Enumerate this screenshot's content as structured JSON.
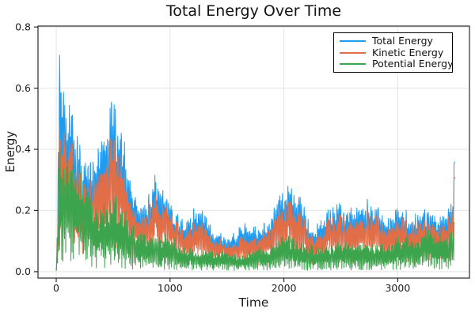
{
  "chart_data": {
    "type": "line",
    "title": "Total Energy Over Time",
    "xlabel": "Time",
    "ylabel": "Energy",
    "xlim": [
      -160,
      3630
    ],
    "ylim": [
      -0.021,
      0.803
    ],
    "xticks": [
      0,
      1000,
      2000,
      3000
    ],
    "yticks": [
      0.0,
      0.2,
      0.4,
      0.6,
      0.8
    ],
    "grid": true,
    "legend_position": "top-right",
    "x_data_range": [
      0,
      3500
    ],
    "series": [
      {
        "name": "Total Energy",
        "color": "#1E9CF2"
      },
      {
        "name": "Kinetic Energy",
        "color": "#E26E48"
      },
      {
        "name": "Potential Energy",
        "color": "#3CA44C"
      }
    ],
    "description": "Three dense noisy time-series; each curve oscillates rapidly between near zero and its upper envelope. Peak total energy 0.78 near t=25, decaying to a minimum band around t=1500, partial recovery near t=2000 and a final spike to 0.36 at t=3500.",
    "envelope": {
      "t": [
        0,
        25,
        60,
        100,
        150,
        220,
        300,
        400,
        520,
        600,
        650,
        750,
        850,
        950,
        1050,
        1150,
        1250,
        1400,
        1550,
        1700,
        1850,
        1950,
        2050,
        2150,
        2250,
        2350,
        2450,
        2550,
        2650,
        2750,
        2850,
        2950,
        3050,
        3150,
        3250,
        3350,
        3450,
        3500
      ],
      "total": [
        0.15,
        0.78,
        0.74,
        0.62,
        0.55,
        0.5,
        0.48,
        0.52,
        0.56,
        0.5,
        0.38,
        0.3,
        0.32,
        0.32,
        0.25,
        0.24,
        0.22,
        0.17,
        0.15,
        0.18,
        0.22,
        0.28,
        0.3,
        0.24,
        0.2,
        0.22,
        0.25,
        0.27,
        0.28,
        0.24,
        0.26,
        0.2,
        0.24,
        0.25,
        0.28,
        0.24,
        0.26,
        0.36
      ],
      "kinetic": [
        0.1,
        0.52,
        0.5,
        0.46,
        0.42,
        0.39,
        0.37,
        0.4,
        0.43,
        0.38,
        0.29,
        0.24,
        0.25,
        0.24,
        0.2,
        0.18,
        0.16,
        0.13,
        0.11,
        0.13,
        0.17,
        0.22,
        0.24,
        0.19,
        0.16,
        0.17,
        0.2,
        0.21,
        0.22,
        0.19,
        0.21,
        0.16,
        0.19,
        0.2,
        0.22,
        0.19,
        0.2,
        0.31
      ],
      "potential": [
        0.1,
        0.45,
        0.42,
        0.4,
        0.36,
        0.33,
        0.3,
        0.28,
        0.3,
        0.27,
        0.2,
        0.16,
        0.13,
        0.12,
        0.11,
        0.1,
        0.09,
        0.08,
        0.07,
        0.08,
        0.1,
        0.12,
        0.13,
        0.11,
        0.1,
        0.1,
        0.11,
        0.12,
        0.12,
        0.11,
        0.12,
        0.1,
        0.12,
        0.12,
        0.13,
        0.13,
        0.14,
        0.17
      ]
    },
    "style": {
      "grid_color": "#e4e4e4",
      "frame_color": "#2a2a2a",
      "tick_text_color": "#1c1c1c",
      "background": "#ffffff"
    }
  }
}
